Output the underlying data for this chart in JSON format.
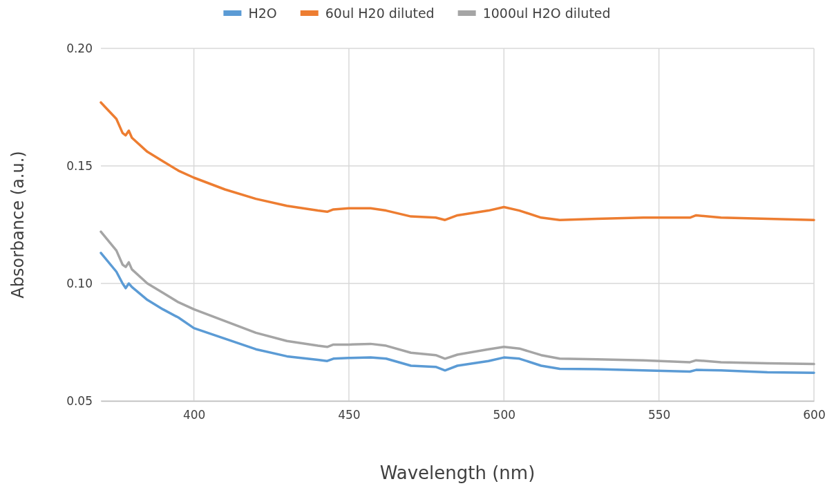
{
  "chart_data": {
    "type": "line",
    "xlabel": "Wavelength (nm)",
    "ylabel": "Absorbance (a.u.)",
    "xlim": [
      370,
      600
    ],
    "xticks": [
      400,
      450,
      500,
      550,
      600
    ],
    "ylim": [
      0.05,
      0.2
    ],
    "yticks": [
      {
        "value": 0.05,
        "label": "0.05"
      },
      {
        "value": 0.1,
        "label": "0.10"
      },
      {
        "value": 0.15,
        "label": "0.15"
      },
      {
        "value": 0.2,
        "label": "0.20"
      }
    ],
    "grid": true,
    "legend": "top",
    "marker": "none",
    "line_style": "solid",
    "x": [
      370,
      375,
      377,
      378,
      379,
      380,
      385,
      390,
      395,
      400,
      410,
      420,
      430,
      440,
      443,
      445,
      450,
      457,
      462,
      470,
      478,
      481,
      485,
      495,
      500,
      505,
      512,
      518,
      530,
      545,
      560,
      562,
      570,
      585,
      600
    ],
    "series": [
      {
        "name": "H2O",
        "color": "#5b9bd5",
        "values": [
          0.113,
          0.105,
          0.1,
          0.098,
          0.1,
          0.0985,
          0.093,
          0.089,
          0.0855,
          0.081,
          0.0765,
          0.072,
          0.069,
          0.0675,
          0.067,
          0.068,
          0.0683,
          0.0685,
          0.068,
          0.065,
          0.0645,
          0.063,
          0.065,
          0.067,
          0.0685,
          0.068,
          0.065,
          0.0637,
          0.0635,
          0.063,
          0.0625,
          0.0632,
          0.063,
          0.0622,
          0.062
        ]
      },
      {
        "name": "60ul H20 diluted",
        "color": "#ed7d31",
        "values": [
          0.177,
          0.17,
          0.164,
          0.163,
          0.165,
          0.162,
          0.156,
          0.152,
          0.148,
          0.145,
          0.14,
          0.136,
          0.133,
          0.131,
          0.1305,
          0.1315,
          0.132,
          0.132,
          0.131,
          0.1285,
          0.128,
          0.127,
          0.129,
          0.131,
          0.1325,
          0.131,
          0.128,
          0.127,
          0.1275,
          0.128,
          0.128,
          0.129,
          0.128,
          0.1275,
          0.127
        ]
      },
      {
        "name": "1000ul H2O diluted",
        "color": "#a5a5a5",
        "values": [
          0.122,
          0.114,
          0.108,
          0.107,
          0.109,
          0.106,
          0.1,
          0.096,
          0.092,
          0.089,
          0.084,
          0.079,
          0.0755,
          0.0735,
          0.073,
          0.074,
          0.074,
          0.0743,
          0.0735,
          0.0705,
          0.0695,
          0.068,
          0.0697,
          0.072,
          0.073,
          0.0723,
          0.0695,
          0.068,
          0.0677,
          0.0673,
          0.0665,
          0.0673,
          0.0665,
          0.066,
          0.0657
        ]
      }
    ]
  }
}
